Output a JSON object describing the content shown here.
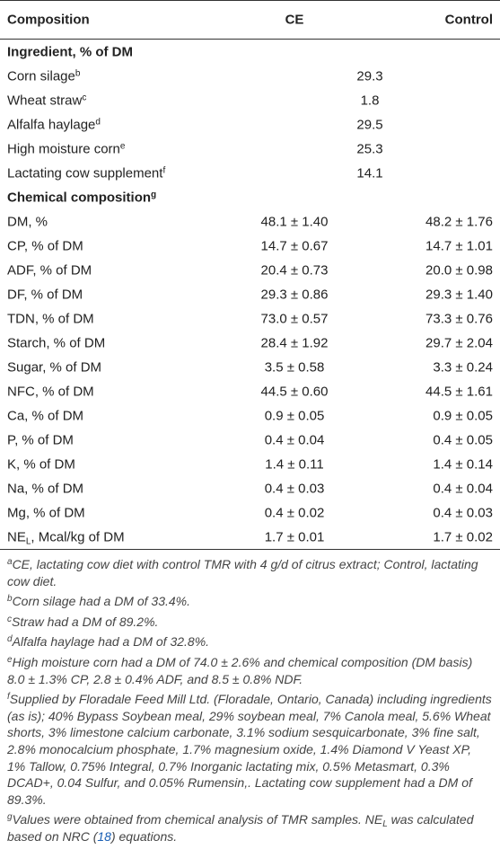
{
  "table": {
    "header": [
      "Composition",
      "CE",
      "Control"
    ],
    "sections": [
      {
        "title": "Ingredient, % of DM",
        "rows": [
          {
            "label": "Corn silage",
            "sup": "b",
            "value": "29.3"
          },
          {
            "label": "Wheat straw",
            "sup": "c",
            "value": "1.8"
          },
          {
            "label": "Alfalfa haylage",
            "sup": "d",
            "value": "29.5"
          },
          {
            "label": "High moisture corn",
            "sup": "e",
            "value": "25.3"
          },
          {
            "label": "Lactating cow supplement",
            "sup": "f",
            "value": "14.1"
          }
        ]
      },
      {
        "title": "Chemical composition",
        "sup": "g",
        "rows": [
          {
            "label": "DM, %",
            "ce": "48.1 ± 1.40",
            "control": "48.2 ± 1.76"
          },
          {
            "label": "CP, % of DM",
            "ce": "14.7 ± 0.67",
            "control": "14.7 ± 1.01"
          },
          {
            "label": "ADF, % of DM",
            "ce": "20.4 ± 0.73",
            "control": "20.0 ± 0.98"
          },
          {
            "label": "DF, % of DM",
            "ce": "29.3 ± 0.86",
            "control": "29.3 ± 1.40"
          },
          {
            "label": "TDN, % of DM",
            "ce": "73.0 ± 0.57",
            "control": "73.3 ± 0.76"
          },
          {
            "label": "Starch, % of DM",
            "ce": "28.4 ± 1.92",
            "control": "29.7 ± 2.04"
          },
          {
            "label": "Sugar, % of DM",
            "ce": "3.5 ± 0.58",
            "control": "3.3 ± 0.24"
          },
          {
            "label": "NFC, % of DM",
            "ce": "44.5 ± 0.60",
            "control": "44.5 ± 1.61"
          },
          {
            "label": "Ca, % of DM",
            "ce": "0.9 ± 0.05",
            "control": "0.9 ± 0.05"
          },
          {
            "label": "P, % of DM",
            "ce": "0.4 ± 0.04",
            "control": "0.4 ± 0.05"
          },
          {
            "label": "K, % of DM",
            "ce": "1.4 ± 0.11",
            "control": "1.4 ± 0.14"
          },
          {
            "label": "Na, % of DM",
            "ce": "0.4 ± 0.03",
            "control": "0.4 ± 0.04"
          },
          {
            "label": "Mg, % of DM",
            "ce": "0.4 ± 0.02",
            "control": "0.4 ± 0.03"
          },
          {
            "label": "NE",
            "sub": "L",
            "label_rest": ", Mcal/kg of DM",
            "ce": "1.7 ± 0.01",
            "control": "1.7 ± 0.02"
          }
        ]
      }
    ]
  },
  "footnotes": [
    {
      "mark": "a",
      "parts": [
        "CE, lactating cow diet with control TMR with 4 g/d of citrus extract; Control, lactating cow diet."
      ]
    },
    {
      "mark": "b",
      "parts": [
        "Corn silage had a DM of 33.4%."
      ]
    },
    {
      "mark": "c",
      "parts": [
        "Straw had a DM of 89.2%."
      ]
    },
    {
      "mark": "d",
      "parts": [
        "Alfalfa haylage had a DM of 32.8%."
      ]
    },
    {
      "mark": "e",
      "parts": [
        "High moisture corn had a DM of 74.0 ± 2.6% and chemical composition (DM basis) 8.0 ± 1.3% CP, 2.8 ± 0.4% ADF, and 8.5 ± 0.8% NDF."
      ]
    },
    {
      "mark": "f",
      "parts": [
        "Supplied by Floradale Feed Mill Ltd. (Floradale, Ontario, Canada) including ingredients (as is); 40% Bypass Soybean meal, 29% soybean meal, 7% Canola meal, 5.6% Wheat shorts, 3% limestone calcium carbonate, 3.1% sodium sesquicarbonate, 3% fine salt, 2.8% monocalcium phosphate, 1.7% magnesium oxide, 1.4% Diamond V Yeast XP, 1% Tallow, 0.75% Integral, 0.7% Inorganic lactating mix, 0.5% Metasmart, 0.3% DCAD+, 0.04 Sulfur, and 0.05% Rumensin,. Lactating cow supplement had a DM of 89.3%."
      ]
    },
    {
      "mark": "g",
      "parts": [
        "Values were obtained from chemical analysis of TMR samples. NE",
        {
          "sub": "L"
        },
        " was calculated based on NRC (",
        {
          "link": "18"
        },
        ") equations."
      ]
    }
  ]
}
